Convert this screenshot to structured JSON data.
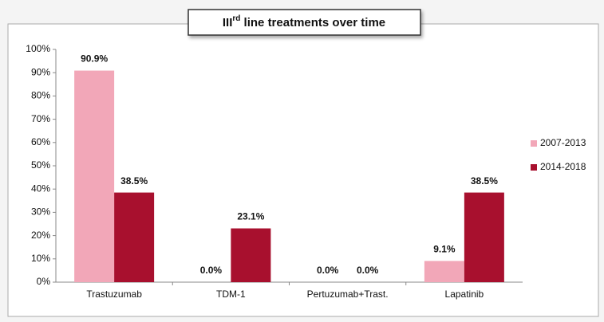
{
  "chart_data": {
    "type": "bar",
    "title": [
      "III",
      "rd",
      " line treatments over time"
    ],
    "categories": [
      "Trastuzumab",
      "TDM-1",
      "Pertuzumab+Trast.",
      "Lapatinib"
    ],
    "series": [
      {
        "name": "2007-2013",
        "color": "#f2a7b8",
        "values": [
          90.9,
          0.0,
          0.0,
          9.1
        ],
        "value_labels": [
          "90.9%",
          "0.0%",
          "0.0%",
          "9.1%"
        ]
      },
      {
        "name": "2014-2018",
        "color": "#a8102e",
        "values": [
          38.5,
          23.1,
          0.0,
          38.5
        ],
        "value_labels": [
          "38.5%",
          "23.1%",
          "0.0%",
          "38.5%"
        ]
      }
    ],
    "ylim": [
      0,
      100
    ],
    "yticks": [
      {
        "value": 0,
        "label": "0%"
      },
      {
        "value": 10,
        "label": "10%"
      },
      {
        "value": 20,
        "label": "20%"
      },
      {
        "value": 30,
        "label": "30%"
      },
      {
        "value": 40,
        "label": "40%"
      },
      {
        "value": 50,
        "label": "50%"
      },
      {
        "value": 60,
        "label": "60%"
      },
      {
        "value": 70,
        "label": "70%"
      },
      {
        "value": 80,
        "label": "80%"
      },
      {
        "value": 90,
        "label": "90%"
      },
      {
        "value": 100,
        "label": "100%"
      }
    ],
    "legend": "right"
  }
}
